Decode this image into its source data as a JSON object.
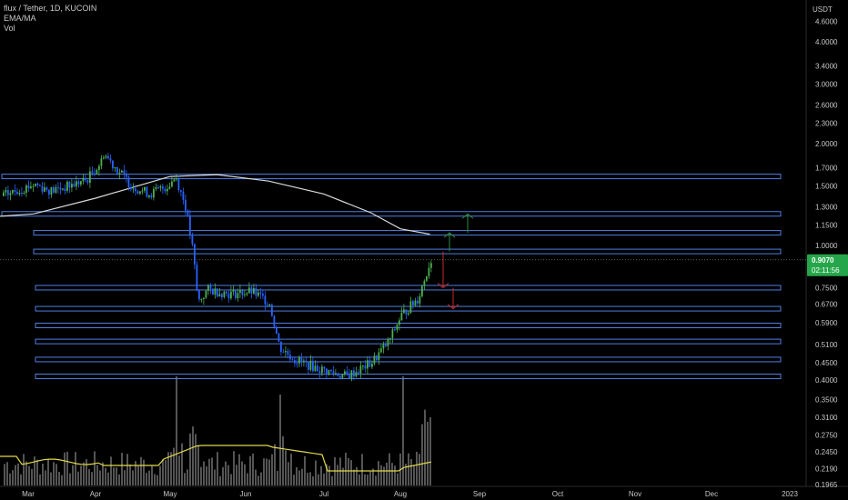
{
  "header": {
    "symbol_line": "flux / Tether, 1D, KUCOIN",
    "indicator_1": "EMA/MA",
    "indicator_2": "Vol"
  },
  "price_axis": {
    "currency": "USDT"
  },
  "last_price": {
    "value": "0.9070",
    "countdown": "02:11:56",
    "color": "#26a64a"
  },
  "colors": {
    "up_candle": "#4caf50",
    "down_candle": "#2962ff",
    "level_line": "#4f7fe0",
    "ma_line": "#d9d9d9",
    "vol_ma": "#e0d94a",
    "volume_bar": "#555555",
    "arrow_up": "#2e8b3e",
    "arrow_down": "#c62828"
  },
  "chart_data": {
    "type": "candlestick",
    "title": "flux / Tether, 1D, KUCOIN",
    "y_scale": "log",
    "ylim": [
      0.19,
      5.2
    ],
    "y_ticks": [
      4.6,
      4.0,
      3.4,
      3.0,
      2.6,
      2.3,
      2.0,
      1.7,
      1.5,
      1.3,
      1.15,
      1.0,
      0.907,
      0.75,
      0.67,
      0.59,
      0.51,
      0.45,
      0.4,
      0.35,
      0.31,
      0.275,
      0.245,
      0.219,
      0.1965
    ],
    "y_tick_labels": [
      "4.6000",
      "4.0000",
      "3.4000",
      "3.0000",
      "2.6000",
      "2.3000",
      "2.0000",
      "1.7000",
      "1.5000",
      "1.3000",
      "1.1500",
      "1.0000",
      "0.9070",
      "0.7500",
      "0.6700",
      "0.5900",
      "0.5100",
      "0.4500",
      "0.4000",
      "0.3500",
      "0.3100",
      "0.2750",
      "0.2450",
      "0.2190",
      "0.1965"
    ],
    "x_ticks": [
      "Mar",
      "Apr",
      "May",
      "Jun",
      "Jul",
      "Aug",
      "Sep",
      "Oct",
      "Nov",
      "Dec",
      "2023"
    ],
    "price_path": [
      {
        "date": "Mar 1",
        "close": 1.52
      },
      {
        "date": "Mar 8",
        "close": 1.45
      },
      {
        "date": "Mar 15",
        "close": 1.5
      },
      {
        "date": "Mar 22",
        "close": 1.56
      },
      {
        "date": "Mar 29",
        "close": 1.8
      },
      {
        "date": "Apr 2",
        "close": 1.95
      },
      {
        "date": "Apr 8",
        "close": 1.72
      },
      {
        "date": "Apr 15",
        "close": 1.5
      },
      {
        "date": "Apr 22",
        "close": 1.42
      },
      {
        "date": "Apr 29",
        "close": 1.5
      },
      {
        "date": "May 3",
        "close": 1.6
      },
      {
        "date": "May 7",
        "close": 1.3
      },
      {
        "date": "May 10",
        "close": 0.95
      },
      {
        "date": "May 12",
        "close": 0.68
      },
      {
        "date": "May 16",
        "close": 0.74
      },
      {
        "date": "May 25",
        "close": 0.72
      },
      {
        "date": "Jun 3",
        "close": 0.73
      },
      {
        "date": "Jun 10",
        "close": 0.68
      },
      {
        "date": "Jun 14",
        "close": 0.5
      },
      {
        "date": "Jun 20",
        "close": 0.46
      },
      {
        "date": "Jun 30",
        "close": 0.43
      },
      {
        "date": "Jul 10",
        "close": 0.41
      },
      {
        "date": "Jul 20",
        "close": 0.45
      },
      {
        "date": "Jul 27",
        "close": 0.52
      },
      {
        "date": "Aug 1",
        "close": 0.62
      },
      {
        "date": "Aug 8",
        "close": 0.7
      },
      {
        "date": "Aug 13",
        "close": 0.907
      }
    ],
    "ma_path": [
      {
        "date": "Mar 1",
        "value": 1.24
      },
      {
        "date": "Apr 1",
        "value": 1.38
      },
      {
        "date": "May 1",
        "value": 1.6
      },
      {
        "date": "May 20",
        "value": 1.62
      },
      {
        "date": "Jun 10",
        "value": 1.55
      },
      {
        "date": "Jul 1",
        "value": 1.42
      },
      {
        "date": "Jul 20",
        "value": 1.25
      },
      {
        "date": "Aug 1",
        "value": 1.12
      },
      {
        "date": "Aug 13",
        "value": 1.08
      }
    ],
    "horizontal_levels": [
      1.6,
      1.24,
      1.09,
      0.96,
      0.75,
      0.65,
      0.58,
      0.52,
      0.46,
      0.41
    ],
    "arrows": [
      {
        "direction": "up",
        "from": 1.09,
        "to": 1.24
      },
      {
        "direction": "up",
        "from": 0.96,
        "to": 1.09
      },
      {
        "direction": "down",
        "from": 0.96,
        "to": 0.75
      },
      {
        "direction": "down",
        "from": 0.75,
        "to": 0.65
      }
    ]
  }
}
